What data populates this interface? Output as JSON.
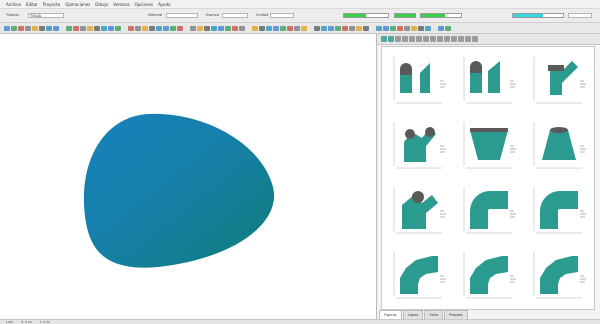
{
  "menu": [
    "Archivo",
    "Editar",
    "Proyecto",
    "Operaciones",
    "Dibujo",
    "Ventana",
    "Opciones",
    "Ayuda"
  ],
  "options": {
    "job_label": "Trabajo",
    "job_value": "TOLVA",
    "field_labels": [
      "Material",
      "Espesor",
      "Unidad"
    ],
    "meters": [
      {
        "fill": 0.5,
        "color": "#38d24a"
      },
      {
        "fill": 1.0,
        "color": "#38d24a"
      },
      {
        "fill": 0.6,
        "color": "#38d24a"
      },
      {
        "fill": 0.6,
        "color": "#30d8e0"
      }
    ]
  },
  "colors": {
    "shape_top": "#1582bc",
    "shape_mid": "#157fa6",
    "shape_bottom": "#0f7d78",
    "part_fill": "#2b9a8f",
    "part_dark": "#5a5a5a"
  },
  "palette": [
    {
      "name": "cylinder-cut"
    },
    {
      "name": "cylinder-angled"
    },
    {
      "name": "tee-branch"
    },
    {
      "name": "y-branch"
    },
    {
      "name": "cone-truncated"
    },
    {
      "name": "cone-square"
    },
    {
      "name": "cone-branch"
    },
    {
      "name": "elbow-90"
    },
    {
      "name": "elbow-90-b"
    },
    {
      "name": "elbow-segmented"
    },
    {
      "name": "elbow-segmented-b"
    },
    {
      "name": "elbow-segmented-c"
    }
  ],
  "tabs": [
    "Figuras",
    "Capas",
    "Vista",
    "Propied."
  ],
  "status": [
    "Listo",
    "X: 0.00",
    "Y: 0.00"
  ]
}
